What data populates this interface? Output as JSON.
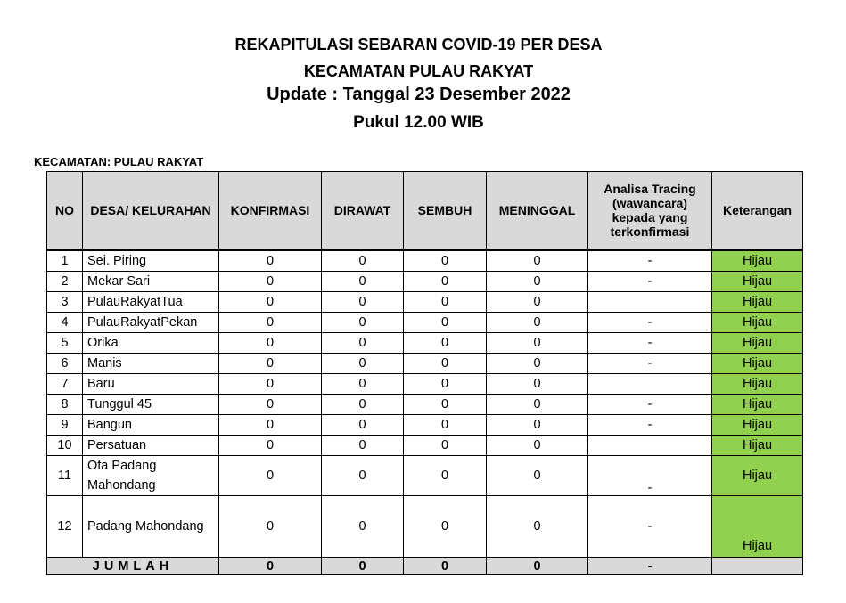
{
  "title": [
    "REKAPITULASI SEBARAN COVID-19 PER DESA",
    "KECAMATAN PULAU RAKYAT",
    "Update : Tanggal 23 Desember 2022",
    "Pukul 12.00 WIB"
  ],
  "kecamatan_label": "KECAMATAN: PULAU RAKYAT",
  "headers": [
    "NO",
    "DESA/ KELURAHAN",
    "KONFIRMASI",
    "DIRAWAT",
    "SEMBUH",
    "MENINGGAL",
    "Analisa Tracing (wawancara) kepada yang terkonfirmasi",
    "Keterangan"
  ],
  "rows": [
    {
      "no": "1",
      "desa": "Sei. Piring",
      "konfirmasi": "0",
      "dirawat": "0",
      "sembuh": "0",
      "meninggal": "0",
      "tracing": "-",
      "ket": "Hijau"
    },
    {
      "no": "2",
      "desa": "Mekar Sari",
      "konfirmasi": "0",
      "dirawat": "0",
      "sembuh": "0",
      "meninggal": "0",
      "tracing": "-",
      "ket": "Hijau"
    },
    {
      "no": "3",
      "desa": "PulauRakyatTua",
      "konfirmasi": "0",
      "dirawat": "0",
      "sembuh": "0",
      "meninggal": "0",
      "tracing": "",
      "ket": "Hijau"
    },
    {
      "no": "4",
      "desa": "PulauRakyatPekan",
      "konfirmasi": "0",
      "dirawat": "0",
      "sembuh": "0",
      "meninggal": "0",
      "tracing": "-",
      "ket": "Hijau"
    },
    {
      "no": "5",
      "desa": "Orika",
      "konfirmasi": "0",
      "dirawat": "0",
      "sembuh": "0",
      "meninggal": "0",
      "tracing": "-",
      "ket": "Hijau"
    },
    {
      "no": "6",
      "desa": "Manis",
      "konfirmasi": "0",
      "dirawat": "0",
      "sembuh": "0",
      "meninggal": "0",
      "tracing": "-",
      "ket": "Hijau"
    },
    {
      "no": "7",
      "desa": "Baru",
      "konfirmasi": "0",
      "dirawat": "0",
      "sembuh": "0",
      "meninggal": "0",
      "tracing": "",
      "ket": "Hijau"
    },
    {
      "no": "8",
      "desa": "Tunggul 45",
      "konfirmasi": "0",
      "dirawat": "0",
      "sembuh": "0",
      "meninggal": "0",
      "tracing": "-",
      "ket": "Hijau"
    },
    {
      "no": "9",
      "desa": "Bangun",
      "konfirmasi": "0",
      "dirawat": "0",
      "sembuh": "0",
      "meninggal": "0",
      "tracing": "-",
      "ket": "Hijau"
    },
    {
      "no": "10",
      "desa": "Persatuan",
      "konfirmasi": "0",
      "dirawat": "0",
      "sembuh": "0",
      "meninggal": "0",
      "tracing": "",
      "ket": "Hijau"
    },
    {
      "no": "11",
      "desa": "Ofa Padang Mahondang",
      "konfirmasi": "0",
      "dirawat": "0",
      "sembuh": "0",
      "meninggal": "0",
      "tracing": "-",
      "ket": "Hijau"
    },
    {
      "no": "12",
      "desa": "Padang Mahondang",
      "konfirmasi": "0",
      "dirawat": "0",
      "sembuh": "0",
      "meninggal": "0",
      "tracing": "-",
      "ket": "Hijau"
    }
  ],
  "total": {
    "label": "JUMLAH",
    "konfirmasi": "0",
    "dirawat": "0",
    "sembuh": "0",
    "meninggal": "0",
    "tracing": "-",
    "ket": ""
  },
  "colors": {
    "hijau": "#92d050",
    "header": "#d9d9d9"
  }
}
